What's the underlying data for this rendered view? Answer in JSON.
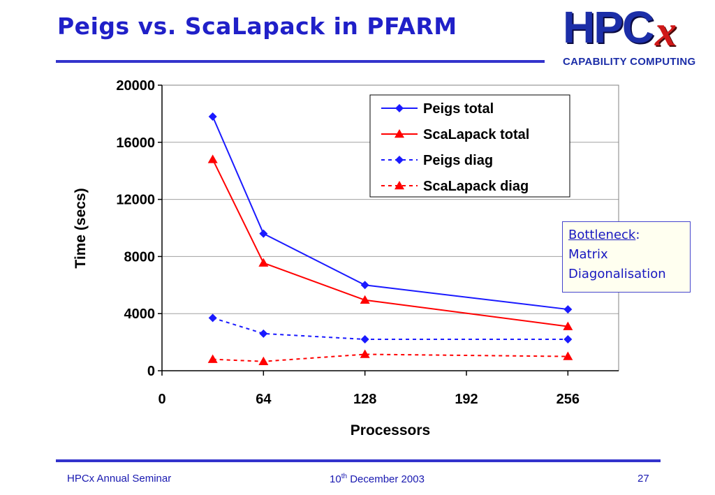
{
  "slide": {
    "title": "Peigs vs. ScaLapack in PFARM",
    "logo_text": "HPC",
    "logo_mark": "x",
    "logo_subtitle": "CAPABILITY COMPUTING"
  },
  "annotation": {
    "heading": "Bottleneck",
    "heading_suffix": ":",
    "line1": "Matrix",
    "line2": "Diagonalisation"
  },
  "footer": {
    "left": "HPCx Annual Seminar",
    "date_day": "10",
    "date_suffix": "th",
    "date_rest": " December 2003",
    "page": "27"
  },
  "chart_data": {
    "type": "line",
    "xlabel": "Processors",
    "ylabel": "Time (secs)",
    "xlim": [
      0,
      288
    ],
    "ylim": [
      0,
      20000
    ],
    "xticks": [
      0,
      64,
      128,
      192,
      256
    ],
    "yticks": [
      0,
      4000,
      8000,
      12000,
      16000,
      20000
    ],
    "grid": "horizontal",
    "legend": "top-right",
    "series": [
      {
        "name": "Peigs total",
        "color": "#1a1aff",
        "marker": "diamond",
        "dash": "solid",
        "x": [
          32,
          64,
          128,
          256
        ],
        "y": [
          17800,
          9600,
          6000,
          4300
        ]
      },
      {
        "name": "ScaLapack total",
        "color": "#ff0000",
        "marker": "triangle",
        "dash": "solid",
        "x": [
          32,
          64,
          128,
          256
        ],
        "y": [
          14800,
          7550,
          4950,
          3100
        ]
      },
      {
        "name": "Peigs diag",
        "color": "#1a1aff",
        "marker": "diamond",
        "dash": "dashed",
        "x": [
          32,
          64,
          128,
          256
        ],
        "y": [
          3700,
          2600,
          2200,
          2200
        ]
      },
      {
        "name": "ScaLapack diag",
        "color": "#ff0000",
        "marker": "triangle",
        "dash": "dashed",
        "x": [
          32,
          64,
          128,
          256
        ],
        "y": [
          800,
          650,
          1150,
          1000
        ]
      }
    ]
  }
}
